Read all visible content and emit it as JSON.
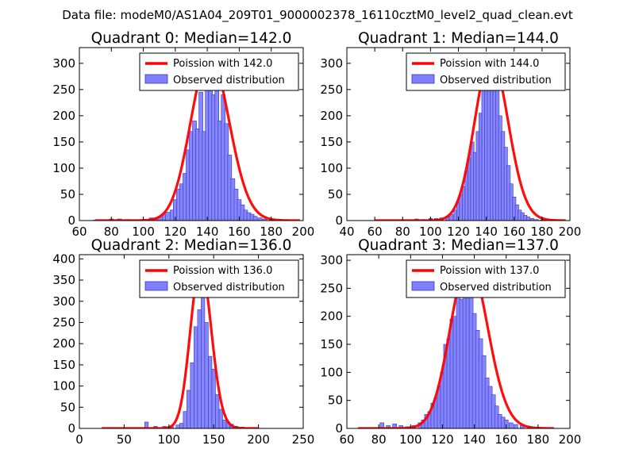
{
  "figure": {
    "suptitle": "Data file: modeM0/AS1A04_209T01_9000002378_16110cztM0_level2_quad_clean.evt",
    "colors": {
      "hist_fill": "#7f7fff",
      "hist_edge": "#3a3ab0",
      "curve": "#ff0000",
      "legend_edge": "#000000"
    }
  },
  "chart_data": [
    {
      "type": "bar",
      "title": "Quadrant 0: Median=142.0",
      "xlim": [
        60,
        200
      ],
      "ylim": [
        0,
        330
      ],
      "xticks": [
        60,
        80,
        100,
        120,
        140,
        160,
        180,
        200
      ],
      "yticks": [
        0,
        50,
        100,
        150,
        200,
        250,
        300
      ],
      "legend": {
        "placement": "upper-right",
        "entries": [
          "Poission with 142.0",
          "Observed distribution"
        ]
      },
      "bin_width": 2.5,
      "bins": [
        [
          70,
          1
        ],
        [
          80,
          3
        ],
        [
          85,
          3
        ],
        [
          90,
          2
        ],
        [
          95,
          1
        ],
        [
          100,
          2
        ],
        [
          105,
          5
        ],
        [
          108,
          5
        ],
        [
          110,
          7
        ],
        [
          113,
          12
        ],
        [
          115,
          16
        ],
        [
          118,
          20
        ],
        [
          120,
          40
        ],
        [
          122,
          60
        ],
        [
          124,
          70
        ],
        [
          126,
          90
        ],
        [
          128,
          135
        ],
        [
          130,
          170
        ],
        [
          132,
          190
        ],
        [
          134,
          175
        ],
        [
          136,
          245
        ],
        [
          138,
          170
        ],
        [
          140,
          265
        ],
        [
          142,
          300
        ],
        [
          144,
          240
        ],
        [
          146,
          250
        ],
        [
          148,
          190
        ],
        [
          150,
          240
        ],
        [
          152,
          185
        ],
        [
          154,
          125
        ],
        [
          156,
          80
        ],
        [
          158,
          60
        ],
        [
          160,
          40
        ],
        [
          162,
          30
        ],
        [
          164,
          20
        ],
        [
          166,
          15
        ],
        [
          168,
          12
        ],
        [
          170,
          8
        ],
        [
          173,
          5
        ],
        [
          176,
          3
        ],
        [
          180,
          2
        ],
        [
          185,
          1
        ],
        [
          190,
          1
        ]
      ],
      "series": [
        {
          "name": "Poission with 142.0",
          "mean": 142.0,
          "peak": 315,
          "x": [
            70,
            198
          ]
        }
      ]
    },
    {
      "type": "bar",
      "title": "Quadrant 1: Median=144.0",
      "xlim": [
        40,
        200
      ],
      "ylim": [
        0,
        330
      ],
      "xticks": [
        40,
        60,
        80,
        100,
        120,
        140,
        160,
        180,
        200
      ],
      "yticks": [
        0,
        50,
        100,
        150,
        200,
        250,
        300
      ],
      "legend": {
        "placement": "upper-right",
        "entries": [
          "Poission with 144.0",
          "Observed distribution"
        ]
      },
      "bin_width": 2.5,
      "bins": [
        [
          90,
          3
        ],
        [
          95,
          2
        ],
        [
          100,
          4
        ],
        [
          104,
          4
        ],
        [
          108,
          5
        ],
        [
          112,
          8
        ],
        [
          115,
          12
        ],
        [
          118,
          20
        ],
        [
          120,
          35
        ],
        [
          122,
          50
        ],
        [
          124,
          65
        ],
        [
          126,
          95
        ],
        [
          128,
          120
        ],
        [
          130,
          150
        ],
        [
          132,
          130
        ],
        [
          134,
          170
        ],
        [
          136,
          205
        ],
        [
          138,
          260
        ],
        [
          140,
          290
        ],
        [
          142,
          300
        ],
        [
          144,
          310
        ],
        [
          146,
          290
        ],
        [
          148,
          265
        ],
        [
          150,
          200
        ],
        [
          152,
          170
        ],
        [
          154,
          140
        ],
        [
          156,
          105
        ],
        [
          158,
          70
        ],
        [
          160,
          45
        ],
        [
          162,
          30
        ],
        [
          164,
          20
        ],
        [
          166,
          15
        ],
        [
          168,
          10
        ],
        [
          170,
          7
        ],
        [
          173,
          4
        ],
        [
          176,
          2
        ],
        [
          180,
          1
        ]
      ],
      "series": [
        {
          "name": "Poission with 144.0",
          "mean": 144.0,
          "peak": 312,
          "x": [
            60,
            197
          ]
        }
      ]
    },
    {
      "type": "bar",
      "title": "Quadrant 2: Median=136.0",
      "xlim": [
        0,
        250
      ],
      "ylim": [
        0,
        410
      ],
      "xticks": [
        0,
        50,
        100,
        150,
        200,
        250
      ],
      "yticks": [
        0,
        50,
        100,
        150,
        200,
        250,
        300,
        350,
        400
      ],
      "legend": {
        "placement": "upper-right",
        "entries": [
          "Poission with 136.0",
          "Observed distribution"
        ]
      },
      "bin_width": 4,
      "bins": [
        [
          75,
          15
        ],
        [
          85,
          5
        ],
        [
          95,
          5
        ],
        [
          103,
          4
        ],
        [
          110,
          8
        ],
        [
          114,
          12
        ],
        [
          118,
          40
        ],
        [
          122,
          90
        ],
        [
          126,
          155
        ],
        [
          130,
          240
        ],
        [
          134,
          280
        ],
        [
          138,
          330
        ],
        [
          142,
          250
        ],
        [
          146,
          170
        ],
        [
          150,
          140
        ],
        [
          154,
          80
        ],
        [
          158,
          45
        ],
        [
          162,
          20
        ],
        [
          166,
          15
        ],
        [
          170,
          10
        ],
        [
          175,
          5
        ],
        [
          182,
          3
        ],
        [
          190,
          2
        ]
      ],
      "series": [
        {
          "name": "Poission with 136.0",
          "mean": 136.0,
          "peak": 385,
          "x": [
            25,
            200
          ]
        }
      ]
    },
    {
      "type": "bar",
      "title": "Quadrant 3: Median=137.0",
      "xlim": [
        60,
        200
      ],
      "ylim": [
        0,
        310
      ],
      "xticks": [
        60,
        80,
        100,
        120,
        140,
        160,
        180,
        200
      ],
      "yticks": [
        0,
        50,
        100,
        150,
        200,
        250,
        300
      ],
      "legend": {
        "placement": "upper-right",
        "entries": [
          "Poission with 137.0",
          "Observed distribution"
        ]
      },
      "bin_width": 2.5,
      "bins": [
        [
          82,
          10
        ],
        [
          86,
          5
        ],
        [
          90,
          8
        ],
        [
          94,
          5
        ],
        [
          98,
          3
        ],
        [
          102,
          5
        ],
        [
          106,
          10
        ],
        [
          108,
          15
        ],
        [
          110,
          25
        ],
        [
          112,
          30
        ],
        [
          114,
          45
        ],
        [
          116,
          55
        ],
        [
          118,
          75
        ],
        [
          120,
          100
        ],
        [
          122,
          150
        ],
        [
          124,
          160
        ],
        [
          126,
          195
        ],
        [
          128,
          200
        ],
        [
          130,
          255
        ],
        [
          132,
          230
        ],
        [
          134,
          260
        ],
        [
          136,
          285
        ],
        [
          138,
          265
        ],
        [
          140,
          205
        ],
        [
          142,
          175
        ],
        [
          144,
          160
        ],
        [
          146,
          130
        ],
        [
          148,
          90
        ],
        [
          150,
          75
        ],
        [
          152,
          60
        ],
        [
          154,
          40
        ],
        [
          156,
          25
        ],
        [
          158,
          20
        ],
        [
          160,
          15
        ],
        [
          163,
          10
        ],
        [
          166,
          7
        ],
        [
          170,
          5
        ],
        [
          175,
          3
        ],
        [
          180,
          2
        ],
        [
          186,
          1
        ]
      ],
      "series": [
        {
          "name": "Poission with 137.0",
          "mean": 137.0,
          "peak": 298,
          "x": [
            67,
            190
          ]
        }
      ]
    }
  ]
}
